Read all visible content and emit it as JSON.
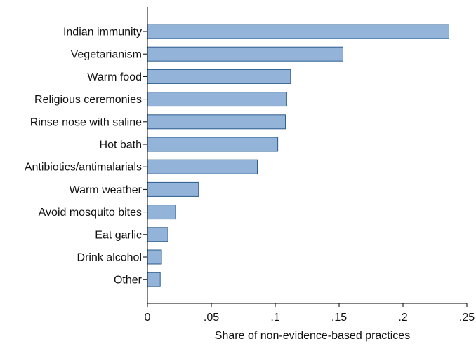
{
  "chart_data": {
    "type": "bar",
    "orientation": "horizontal",
    "categories": [
      "Indian immunity",
      "Vegetarianism",
      "Warm food",
      "Religious ceremonies",
      "Rinse nose with saline",
      "Hot bath",
      "Antibiotics/antimalarials",
      "Warm weather",
      "Avoid mosquito bites",
      "Eat garlic",
      "Drink alcohol",
      "Other"
    ],
    "values": [
      0.236,
      0.153,
      0.112,
      0.109,
      0.108,
      0.102,
      0.086,
      0.04,
      0.022,
      0.016,
      0.011,
      0.01
    ],
    "xlabel": "Share of non-evidence-based practices",
    "ylabel": "",
    "xlim": [
      0,
      0.25
    ],
    "xticks": [
      0,
      0.05,
      0.1,
      0.15,
      0.2,
      0.25
    ],
    "xtick_labels": [
      "0",
      ".05",
      ".1",
      ".15",
      ".2",
      ".25"
    ],
    "grid": false,
    "colors": {
      "bar_fill": "#93b3d8",
      "bar_stroke": "#2a5d8f",
      "axis": "#000000"
    }
  }
}
